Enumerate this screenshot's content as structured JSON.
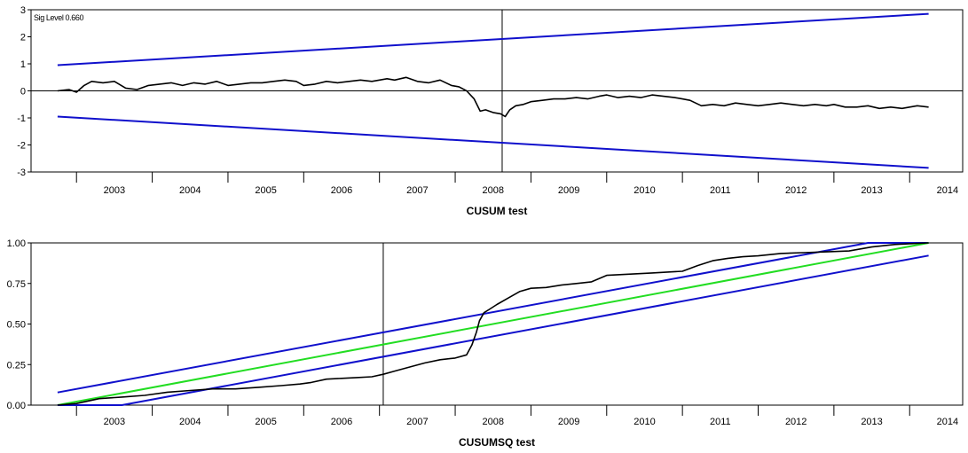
{
  "chart_data": [
    {
      "type": "line",
      "title": "",
      "xlabel": "CUSUM test",
      "ylabel": "",
      "annotation": "Sig Level 0.660",
      "xlim": [
        2002.4,
        2014.7
      ],
      "ylim": [
        -3,
        3
      ],
      "yticks": [
        3,
        2,
        1,
        0,
        -1,
        -2,
        -3
      ],
      "xtick_labels": [
        "2003",
        "2004",
        "2005",
        "2006",
        "2007",
        "2008",
        "2009",
        "2010",
        "2011",
        "2012",
        "2013",
        "2014"
      ],
      "vline_x": 2008.62,
      "zero_line": true,
      "series": [
        {
          "role": "statistic",
          "color": "#000000",
          "x": [
            2002.75,
            2002.9,
            2003.0,
            2003.1,
            2003.2,
            2003.35,
            2003.5,
            2003.65,
            2003.8,
            2003.95,
            2004.1,
            2004.25,
            2004.4,
            2004.55,
            2004.7,
            2004.85,
            2005.0,
            2005.15,
            2005.3,
            2005.45,
            2005.6,
            2005.75,
            2005.9,
            2006.0,
            2006.15,
            2006.3,
            2006.45,
            2006.6,
            2006.75,
            2006.9,
            2007.0,
            2007.1,
            2007.2,
            2007.35,
            2007.5,
            2007.65,
            2007.8,
            2007.95,
            2008.05,
            2008.15,
            2008.25,
            2008.33,
            2008.4,
            2008.5,
            2008.6,
            2008.66,
            2008.72,
            2008.8,
            2008.9,
            2009.0,
            2009.15,
            2009.3,
            2009.45,
            2009.6,
            2009.75,
            2009.9,
            2010.0,
            2010.15,
            2010.3,
            2010.45,
            2010.6,
            2010.75,
            2010.9,
            2011.0,
            2011.1,
            2011.25,
            2011.4,
            2011.55,
            2011.7,
            2011.85,
            2012.0,
            2012.15,
            2012.3,
            2012.45,
            2012.6,
            2012.75,
            2012.9,
            2013.0,
            2013.15,
            2013.3,
            2013.45,
            2013.6,
            2013.75,
            2013.9,
            2014.0,
            2014.1,
            2014.25
          ],
          "y": [
            0.0,
            0.05,
            -0.05,
            0.2,
            0.35,
            0.3,
            0.35,
            0.1,
            0.05,
            0.2,
            0.25,
            0.3,
            0.2,
            0.3,
            0.25,
            0.35,
            0.2,
            0.25,
            0.3,
            0.3,
            0.35,
            0.4,
            0.35,
            0.2,
            0.25,
            0.35,
            0.3,
            0.35,
            0.4,
            0.35,
            0.4,
            0.45,
            0.4,
            0.5,
            0.35,
            0.3,
            0.4,
            0.2,
            0.15,
            0.0,
            -0.3,
            -0.75,
            -0.7,
            -0.8,
            -0.85,
            -0.95,
            -0.7,
            -0.55,
            -0.5,
            -0.4,
            -0.35,
            -0.3,
            -0.3,
            -0.25,
            -0.3,
            -0.2,
            -0.15,
            -0.25,
            -0.2,
            -0.25,
            -0.15,
            -0.2,
            -0.25,
            -0.3,
            -0.35,
            -0.55,
            -0.5,
            -0.55,
            -0.45,
            -0.5,
            -0.55,
            -0.5,
            -0.45,
            -0.5,
            -0.55,
            -0.5,
            -0.55,
            -0.5,
            -0.6,
            -0.6,
            -0.55,
            -0.65,
            -0.6,
            -0.65,
            -0.6,
            -0.55,
            -0.6
          ]
        },
        {
          "role": "upper bound",
          "color": "#1010cc",
          "x": [
            2002.75,
            2014.25
          ],
          "y": [
            0.95,
            2.85
          ]
        },
        {
          "role": "lower bound",
          "color": "#1010cc",
          "x": [
            2002.75,
            2014.25
          ],
          "y": [
            -0.95,
            -2.85
          ]
        }
      ]
    },
    {
      "type": "line",
      "title": "",
      "xlabel": "CUSUMSQ test",
      "ylabel": "",
      "xlim": [
        2002.4,
        2014.7
      ],
      "ylim": [
        0,
        1
      ],
      "yticks": [
        1.0,
        0.75,
        0.5,
        0.25,
        0.0
      ],
      "ytick_labels": [
        "1.00",
        "0.75",
        "0.50",
        "0.25",
        "0.00"
      ],
      "xtick_labels": [
        "2003",
        "2004",
        "2005",
        "2006",
        "2007",
        "2008",
        "2009",
        "2010",
        "2011",
        "2012",
        "2013",
        "2014"
      ],
      "vline_x": 2007.05,
      "series": [
        {
          "role": "statistic",
          "color": "#000000",
          "x": [
            2002.75,
            2003.0,
            2003.3,
            2003.6,
            2003.9,
            2004.2,
            2004.5,
            2004.8,
            2005.1,
            2005.4,
            2005.7,
            2005.95,
            2006.1,
            2006.3,
            2006.5,
            2006.7,
            2006.9,
            2007.05,
            2007.2,
            2007.4,
            2007.6,
            2007.8,
            2008.0,
            2008.15,
            2008.22,
            2008.28,
            2008.32,
            2008.38,
            2008.45,
            2008.55,
            2008.7,
            2008.85,
            2009.0,
            2009.2,
            2009.4,
            2009.6,
            2009.8,
            2010.0,
            2010.2,
            2010.4,
            2010.6,
            2010.8,
            2011.0,
            2011.2,
            2011.4,
            2011.6,
            2011.8,
            2012.0,
            2012.3,
            2012.6,
            2012.9,
            2013.2,
            2013.5,
            2013.8,
            2014.0,
            2014.25
          ],
          "y": [
            0.0,
            0.01,
            0.04,
            0.05,
            0.06,
            0.08,
            0.09,
            0.1,
            0.1,
            0.11,
            0.12,
            0.13,
            0.14,
            0.16,
            0.165,
            0.17,
            0.175,
            0.19,
            0.21,
            0.235,
            0.26,
            0.28,
            0.29,
            0.31,
            0.37,
            0.45,
            0.52,
            0.57,
            0.59,
            0.62,
            0.66,
            0.7,
            0.72,
            0.725,
            0.74,
            0.75,
            0.76,
            0.8,
            0.805,
            0.81,
            0.815,
            0.82,
            0.825,
            0.86,
            0.89,
            0.905,
            0.915,
            0.92,
            0.935,
            0.94,
            0.945,
            0.95,
            0.975,
            0.99,
            0.995,
            1.0
          ]
        },
        {
          "role": "upper bound",
          "color": "#1010cc",
          "x": [
            2002.75,
            2013.45,
            2014.25
          ],
          "y": [
            0.078,
            1.0,
            1.0
          ]
        },
        {
          "role": "expected",
          "color": "#22dd22",
          "x": [
            2002.75,
            2014.25
          ],
          "y": [
            0.0,
            1.0
          ]
        },
        {
          "role": "lower bound",
          "color": "#1010cc",
          "x": [
            2002.75,
            2003.6,
            2014.25
          ],
          "y": [
            0.0,
            0.0,
            0.922
          ]
        }
      ]
    }
  ]
}
